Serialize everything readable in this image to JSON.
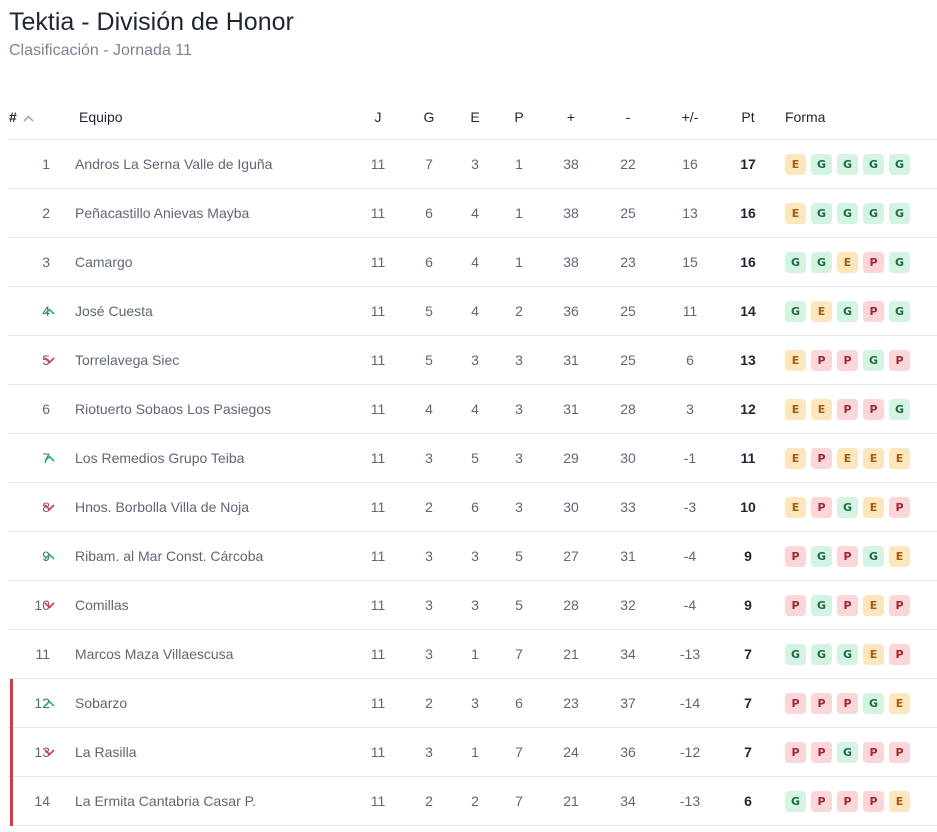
{
  "header": {
    "title": "Tektia - División de Honor",
    "subtitle": "Clasificación - Jornada 11"
  },
  "colors": {
    "win_bg": "#d4f3e3",
    "draw_bg": "#fbe6bd",
    "loss_bg": "#fbd6d9",
    "up_arrow": "#22b573",
    "down_arrow": "#e8323c",
    "relegation_marker": "#e8323c"
  },
  "table": {
    "columns": {
      "pos": "#",
      "team": "Equipo",
      "played": "J",
      "won": "G",
      "drawn": "E",
      "lost": "P",
      "goals_for": "+",
      "goals_against": "-",
      "goal_diff": "+/-",
      "points": "Pt",
      "form": "Forma"
    },
    "sort_icon": "chevron-up-icon",
    "rows": [
      {
        "pos": "1",
        "trend": "none",
        "zone": "",
        "team": "Andros La Serna Valle de Iguña",
        "j": "11",
        "g": "7",
        "e": "3",
        "p": "1",
        "gf": "38",
        "ga": "22",
        "gd": "16",
        "pt": "17",
        "form": [
          "E",
          "G",
          "G",
          "G",
          "G"
        ]
      },
      {
        "pos": "2",
        "trend": "none",
        "zone": "",
        "team": "Peñacastillo Anievas Mayba",
        "j": "11",
        "g": "6",
        "e": "4",
        "p": "1",
        "gf": "38",
        "ga": "25",
        "gd": "13",
        "pt": "16",
        "form": [
          "E",
          "G",
          "G",
          "G",
          "G"
        ]
      },
      {
        "pos": "3",
        "trend": "none",
        "zone": "",
        "team": "Camargo",
        "j": "11",
        "g": "6",
        "e": "4",
        "p": "1",
        "gf": "38",
        "ga": "23",
        "gd": "15",
        "pt": "16",
        "form": [
          "G",
          "G",
          "E",
          "P",
          "G"
        ]
      },
      {
        "pos": "4",
        "trend": "up",
        "zone": "",
        "team": "José Cuesta",
        "j": "11",
        "g": "5",
        "e": "4",
        "p": "2",
        "gf": "36",
        "ga": "25",
        "gd": "11",
        "pt": "14",
        "form": [
          "G",
          "E",
          "G",
          "P",
          "G"
        ]
      },
      {
        "pos": "5",
        "trend": "down",
        "zone": "",
        "team": "Torrelavega Siec",
        "j": "11",
        "g": "5",
        "e": "3",
        "p": "3",
        "gf": "31",
        "ga": "25",
        "gd": "6",
        "pt": "13",
        "form": [
          "E",
          "P",
          "P",
          "G",
          "P"
        ]
      },
      {
        "pos": "6",
        "trend": "none",
        "zone": "",
        "team": "Riotuerto Sobaos Los Pasiegos",
        "j": "11",
        "g": "4",
        "e": "4",
        "p": "3",
        "gf": "31",
        "ga": "28",
        "gd": "3",
        "pt": "12",
        "form": [
          "E",
          "E",
          "P",
          "P",
          "G"
        ]
      },
      {
        "pos": "7",
        "trend": "up",
        "zone": "",
        "team": "Los Remedios Grupo Teiba",
        "j": "11",
        "g": "3",
        "e": "5",
        "p": "3",
        "gf": "29",
        "ga": "30",
        "gd": "-1",
        "pt": "11",
        "form": [
          "E",
          "P",
          "E",
          "E",
          "E"
        ]
      },
      {
        "pos": "8",
        "trend": "down",
        "zone": "",
        "team": "Hnos. Borbolla Villa de Noja",
        "j": "11",
        "g": "2",
        "e": "6",
        "p": "3",
        "gf": "30",
        "ga": "33",
        "gd": "-3",
        "pt": "10",
        "form": [
          "E",
          "P",
          "G",
          "E",
          "P"
        ]
      },
      {
        "pos": "9",
        "trend": "up",
        "zone": "",
        "team": "Ribam. al Mar Const. Cárcoba",
        "j": "11",
        "g": "3",
        "e": "3",
        "p": "5",
        "gf": "27",
        "ga": "31",
        "gd": "-4",
        "pt": "9",
        "form": [
          "P",
          "G",
          "P",
          "G",
          "E"
        ]
      },
      {
        "pos": "10",
        "trend": "down",
        "zone": "",
        "team": "Comillas",
        "j": "11",
        "g": "3",
        "e": "3",
        "p": "5",
        "gf": "28",
        "ga": "32",
        "gd": "-4",
        "pt": "9",
        "form": [
          "P",
          "G",
          "P",
          "E",
          "P"
        ]
      },
      {
        "pos": "11",
        "trend": "none",
        "zone": "",
        "team": "Marcos Maza Villaescusa",
        "j": "11",
        "g": "3",
        "e": "1",
        "p": "7",
        "gf": "21",
        "ga": "34",
        "gd": "-13",
        "pt": "7",
        "form": [
          "G",
          "G",
          "G",
          "E",
          "P"
        ]
      },
      {
        "pos": "12",
        "trend": "up",
        "zone": "relegation",
        "team": "Sobarzo",
        "j": "11",
        "g": "2",
        "e": "3",
        "p": "6",
        "gf": "23",
        "ga": "37",
        "gd": "-14",
        "pt": "7",
        "form": [
          "P",
          "P",
          "P",
          "G",
          "E"
        ]
      },
      {
        "pos": "13",
        "trend": "down",
        "zone": "relegation",
        "team": "La Rasilla",
        "j": "11",
        "g": "3",
        "e": "1",
        "p": "7",
        "gf": "24",
        "ga": "36",
        "gd": "-12",
        "pt": "7",
        "form": [
          "P",
          "P",
          "G",
          "P",
          "P"
        ]
      },
      {
        "pos": "14",
        "trend": "none",
        "zone": "relegation",
        "team": "La Ermita Cantabria Casar P.",
        "j": "11",
        "g": "2",
        "e": "2",
        "p": "7",
        "gf": "21",
        "ga": "34",
        "gd": "-13",
        "pt": "6",
        "form": [
          "G",
          "P",
          "P",
          "P",
          "E"
        ]
      }
    ]
  }
}
